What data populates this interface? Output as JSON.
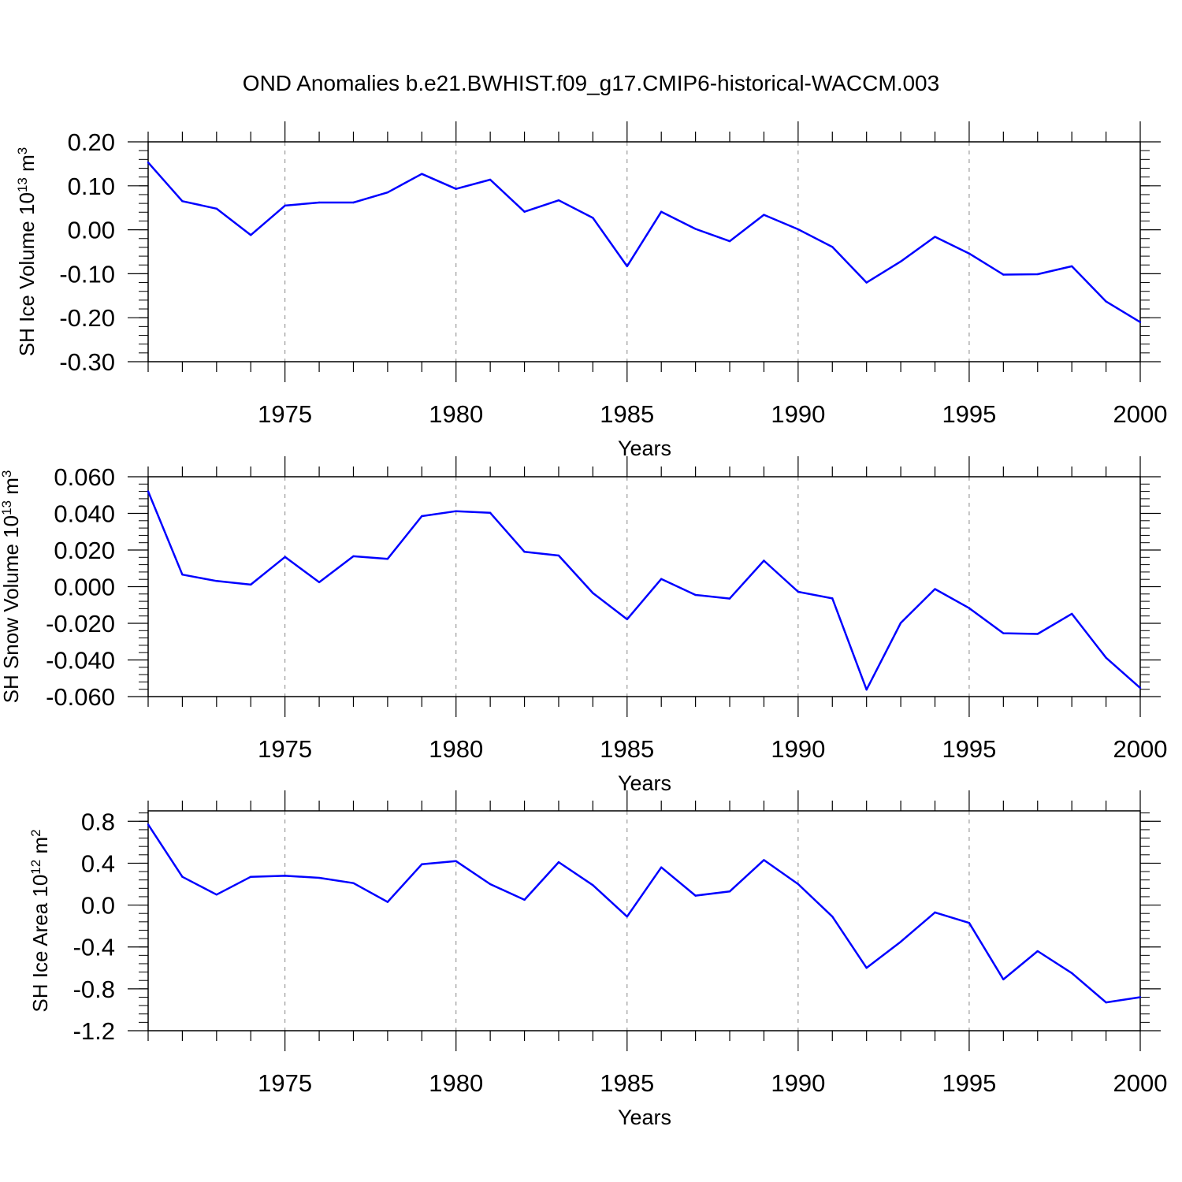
{
  "figure": {
    "title": "OND Anomalies b.e21.BWHIST.f09_g17.CMIP6-historical-WACCM.003"
  },
  "chart_data": [
    {
      "type": "line",
      "ylabel": {
        "main": "SH Ice Volume 10",
        "sup1": "13",
        "mid": " m",
        "sup2": "3"
      },
      "xlabel": "Years",
      "xlim": [
        1971,
        2000
      ],
      "ylim": [
        -0.3,
        0.2
      ],
      "yticks": [
        0.2,
        0.1,
        0.0,
        -0.1,
        -0.2,
        -0.3
      ],
      "ytick_labels": [
        "0.20",
        "0.10",
        "0.00",
        "-0.10",
        "-0.20",
        "-0.30"
      ],
      "yminor_step": 0.02,
      "xticks": [
        1975,
        1980,
        1985,
        1990,
        1995,
        2000
      ],
      "xtick_labels": [
        "1975",
        "1980",
        "1985",
        "1990",
        "1995",
        "2000"
      ],
      "grid": "vertical dashed at labeled years",
      "line_color": "#0000ff",
      "x": [
        1971,
        1972,
        1973,
        1974,
        1975,
        1976,
        1977,
        1978,
        1979,
        1980,
        1981,
        1982,
        1983,
        1984,
        1985,
        1986,
        1987,
        1988,
        1989,
        1990,
        1991,
        1992,
        1993,
        1994,
        1995,
        1996,
        1997,
        1998,
        1999,
        2000
      ],
      "values": [
        0.153,
        0.065,
        0.048,
        -0.012,
        0.055,
        0.062,
        0.062,
        0.085,
        0.127,
        0.093,
        0.114,
        0.041,
        0.067,
        0.027,
        -0.083,
        0.041,
        0.002,
        -0.026,
        0.034,
        0.001,
        -0.039,
        -0.12,
        -0.072,
        -0.016,
        -0.054,
        -0.102,
        -0.101,
        -0.083,
        -0.163,
        -0.21
      ]
    },
    {
      "type": "line",
      "ylabel": {
        "main": "SH Snow Volume 10",
        "sup1": "13",
        "mid": " m",
        "sup2": "3"
      },
      "xlabel": "Years",
      "xlim": [
        1971,
        2000
      ],
      "ylim": [
        -0.06,
        0.06
      ],
      "yticks": [
        0.06,
        0.04,
        0.02,
        0.0,
        -0.02,
        -0.04,
        -0.06
      ],
      "ytick_labels": [
        "0.060",
        "0.040",
        "0.020",
        "0.000",
        "-0.020",
        "-0.040",
        "-0.060"
      ],
      "yminor_step": 0.004,
      "xticks": [
        1975,
        1980,
        1985,
        1990,
        1995,
        2000
      ],
      "xtick_labels": [
        "1975",
        "1980",
        "1985",
        "1990",
        "1995",
        "2000"
      ],
      "grid": "vertical dashed at labeled years",
      "line_color": "#0000ff",
      "x": [
        1971,
        1972,
        1973,
        1974,
        1975,
        1976,
        1977,
        1978,
        1979,
        1980,
        1981,
        1982,
        1983,
        1984,
        1985,
        1986,
        1987,
        1988,
        1989,
        1990,
        1991,
        1992,
        1993,
        1994,
        1995,
        1996,
        1997,
        1998,
        1999,
        2000
      ],
      "values": [
        0.052,
        0.0066,
        0.0031,
        0.0011,
        0.0162,
        0.0024,
        0.0166,
        0.0152,
        0.0385,
        0.0412,
        0.0403,
        0.019,
        0.017,
        -0.0035,
        -0.0178,
        0.0042,
        -0.0045,
        -0.0065,
        0.0142,
        -0.0028,
        -0.0064,
        -0.0562,
        -0.0198,
        -0.0013,
        -0.0117,
        -0.0254,
        -0.0258,
        -0.0148,
        -0.0388,
        -0.0553
      ]
    },
    {
      "type": "line",
      "ylabel": {
        "main": "SH Ice Area 10",
        "sup1": "12",
        "mid": " m",
        "sup2": "2"
      },
      "xlabel": "Years",
      "xlim": [
        1971,
        2000
      ],
      "ylim": [
        -1.2,
        0.9
      ],
      "yticks": [
        0.8,
        0.4,
        0.0,
        -0.4,
        -0.8,
        -1.2
      ],
      "ytick_labels": [
        "0.8",
        "0.4",
        "0.0",
        "-0.4",
        "-0.8",
        "-1.2"
      ],
      "yminor_step": 0.08,
      "xticks": [
        1975,
        1980,
        1985,
        1990,
        1995,
        2000
      ],
      "xtick_labels": [
        "1975",
        "1980",
        "1985",
        "1990",
        "1995",
        "2000"
      ],
      "grid": "vertical dashed at labeled years",
      "line_color": "#0000ff",
      "x": [
        1971,
        1972,
        1973,
        1974,
        1975,
        1976,
        1977,
        1978,
        1979,
        1980,
        1981,
        1982,
        1983,
        1984,
        1985,
        1986,
        1987,
        1988,
        1989,
        1990,
        1991,
        1992,
        1993,
        1994,
        1995,
        1996,
        1997,
        1998,
        1999,
        2000
      ],
      "values": [
        0.77,
        0.27,
        0.1,
        0.27,
        0.28,
        0.26,
        0.21,
        0.03,
        0.39,
        0.42,
        0.2,
        0.05,
        0.41,
        0.19,
        -0.11,
        0.36,
        0.09,
        0.13,
        0.43,
        0.2,
        -0.11,
        -0.6,
        -0.35,
        -0.07,
        -0.17,
        -0.71,
        -0.44,
        -0.65,
        -0.93,
        -0.88
      ]
    }
  ]
}
